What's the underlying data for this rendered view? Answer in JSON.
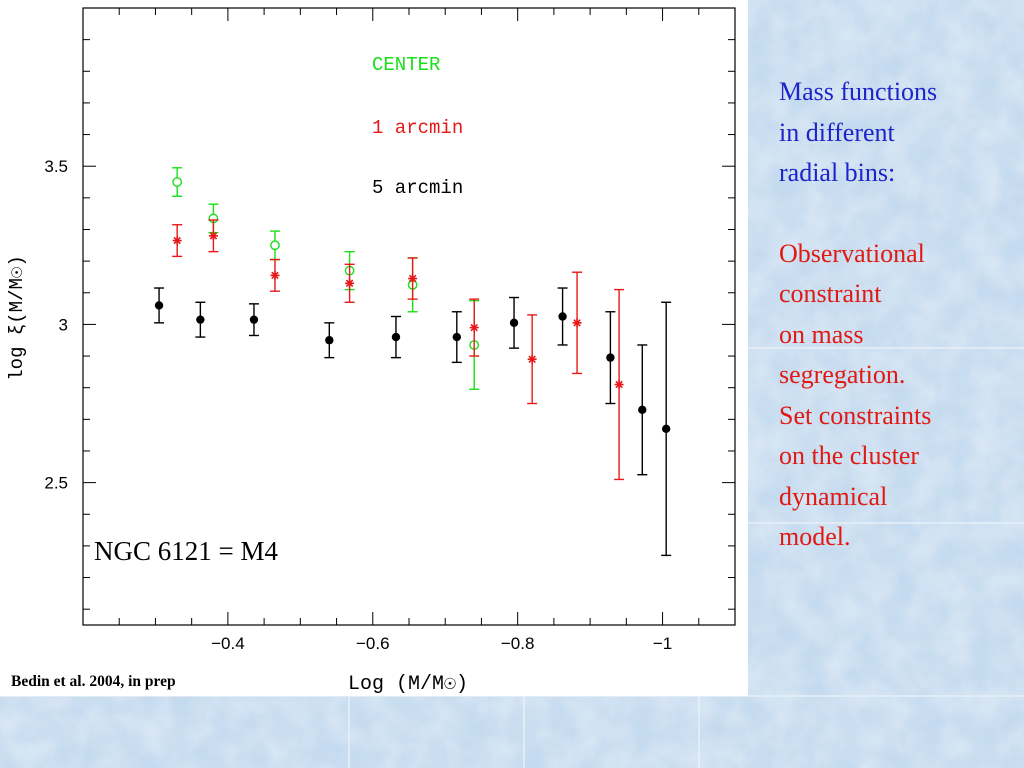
{
  "sidebar": {
    "blue_lines": [
      "Mass functions",
      "in different",
      "radial bins:"
    ],
    "red_lines": [
      "Observational",
      "constraint",
      "on mass",
      "segregation.",
      "Set constraints",
      "on the cluster",
      "dynamical",
      "model."
    ]
  },
  "citation": "Bedin et al. 2004, in prep",
  "annotation": "NGC 6121 = M4",
  "colors": {
    "center": "#18e018",
    "one_arcmin": "#e81818",
    "five_arcmin": "#000000",
    "sidebar_blue": "#1e24c8",
    "sidebar_red": "#e01a12",
    "background": "#c6dbef"
  },
  "chart_data": {
    "type": "scatter",
    "title": "",
    "xlabel": "Log (M/M☉)",
    "ylabel": "log ξ(M/M☉)",
    "xlim": [
      -0.2,
      -1.1
    ],
    "ylim": [
      2.05,
      4.0
    ],
    "x_ticks": [
      {
        "value": -0.4,
        "label": "−0.4"
      },
      {
        "value": -0.6,
        "label": "−0.6"
      },
      {
        "value": -0.8,
        "label": "−0.8"
      },
      {
        "value": -1.0,
        "label": "−1"
      }
    ],
    "y_ticks": [
      {
        "value": 2.5,
        "label": "2.5"
      },
      {
        "value": 3.0,
        "label": "3"
      },
      {
        "value": 3.5,
        "label": "3.5"
      }
    ],
    "grid": false,
    "legend_placement": "top-center",
    "series": [
      {
        "name": "CENTER",
        "marker": "open-circle",
        "color": "#18e018",
        "points": [
          {
            "x": -0.33,
            "y": 3.45,
            "err": 0.045
          },
          {
            "x": -0.38,
            "y": 3.335,
            "err": 0.045
          },
          {
            "x": -0.465,
            "y": 3.25,
            "err": 0.045
          },
          {
            "x": -0.568,
            "y": 3.17,
            "err": 0.06
          },
          {
            "x": -0.655,
            "y": 3.125,
            "err": 0.085
          },
          {
            "x": -0.74,
            "y": 2.935,
            "err": 0.14
          }
        ]
      },
      {
        "name": "1 arcmin",
        "marker": "asterisk",
        "color": "#e81818",
        "points": [
          {
            "x": -0.33,
            "y": 3.265,
            "err": 0.05
          },
          {
            "x": -0.38,
            "y": 3.28,
            "err": 0.05
          },
          {
            "x": -0.465,
            "y": 3.155,
            "err": 0.05
          },
          {
            "x": -0.568,
            "y": 3.13,
            "err": 0.06
          },
          {
            "x": -0.655,
            "y": 3.145,
            "err": 0.065
          },
          {
            "x": -0.74,
            "y": 2.99,
            "err": 0.09
          },
          {
            "x": -0.82,
            "y": 2.89,
            "err": 0.14
          },
          {
            "x": -0.882,
            "y": 3.005,
            "err": 0.16
          },
          {
            "x": -0.94,
            "y": 2.81,
            "err": 0.3
          }
        ]
      },
      {
        "name": "5 arcmin",
        "marker": "filled-circle",
        "color": "#000000",
        "points": [
          {
            "x": -0.305,
            "y": 3.06,
            "err": 0.055
          },
          {
            "x": -0.362,
            "y": 3.015,
            "err": 0.055
          },
          {
            "x": -0.436,
            "y": 3.015,
            "err": 0.05
          },
          {
            "x": -0.54,
            "y": 2.95,
            "err": 0.055
          },
          {
            "x": -0.632,
            "y": 2.96,
            "err": 0.065
          },
          {
            "x": -0.716,
            "y": 2.96,
            "err": 0.08
          },
          {
            "x": -0.795,
            "y": 3.005,
            "err": 0.08
          },
          {
            "x": -0.862,
            "y": 3.025,
            "err": 0.09
          },
          {
            "x": -0.928,
            "y": 2.895,
            "err": 0.145
          },
          {
            "x": -0.972,
            "y": 2.73,
            "err": 0.205
          },
          {
            "x": -1.005,
            "y": 2.67,
            "err": 0.4
          }
        ]
      }
    ]
  }
}
